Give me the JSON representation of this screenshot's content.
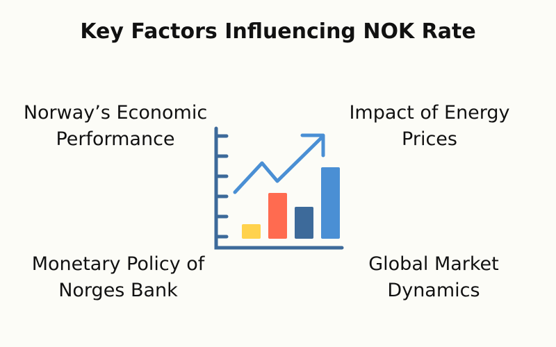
{
  "title": "Key Factors Influencing NOK Rate",
  "factors": [
    {
      "line1": "Norway’s Economic",
      "line2": "Performance"
    },
    {
      "line1": "Impact of Energy",
      "line2": "Prices"
    },
    {
      "line1": "Monetary Policy of",
      "line2": "Norges Bank"
    },
    {
      "line1": "Global Market",
      "line2": "Dynamics"
    }
  ],
  "icon": {
    "name": "growth-chart-icon",
    "colors": {
      "axis": "#3d6a9a",
      "bar1": "#ffd24d",
      "bar2": "#ff6b50",
      "bar3": "#3d6a9a",
      "bar4": "#4a8fd4",
      "trend": "#4a8fd4"
    }
  }
}
